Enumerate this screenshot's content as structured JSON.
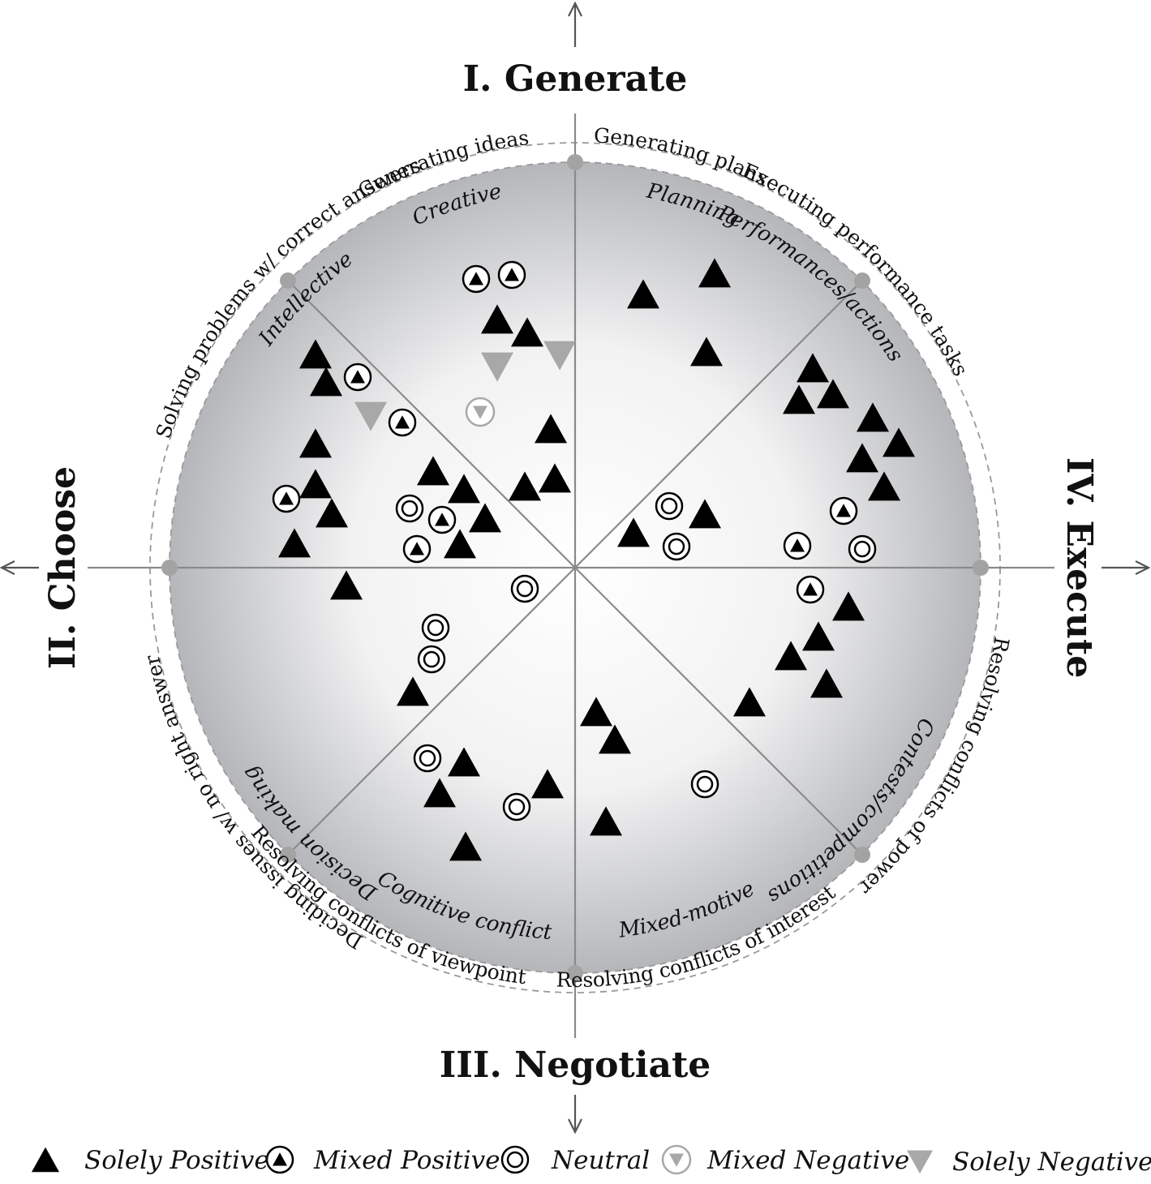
{
  "quadrants": {
    "generate": "I. Generate",
    "choose": "II. Choose",
    "negotiate": "III. Negotiate",
    "execute": "IV. Execute"
  },
  "outer_labels": {
    "generating_ideas": "Generating ideas",
    "generating_plans": "Generating plans",
    "executing_performance": "Executing performance tasks",
    "resolving_power": "Resolving conflicts of power",
    "resolving_interest": "Resolving conflicts of interest",
    "resolving_viewpoint": "Resolving conflicts of viewpoint",
    "deciding_issues": "Deciding issues w/ no right answer",
    "solving_problems": "Solving problems w/ correct answers"
  },
  "sector_labels": {
    "creative": "Creative",
    "planning": "Planning",
    "performances": "Performances/actions",
    "contests": "Contests/competitions",
    "mixed_motive": "Mixed-motive",
    "cognitive_conflict": "Cognitive conflict",
    "decision_making": "Decision making",
    "intellective": "Intellective"
  },
  "legend": {
    "solely_positive": "Solely Positive",
    "mixed_positive": "Mixed Positive",
    "neutral": "Neutral",
    "mixed_negative": "Mixed Negative",
    "solely_negative": "Solely Negative"
  },
  "colors": {
    "marker_dark": "#000000",
    "marker_light": "#a8a8a8",
    "circle_edge": "#b4b6b9",
    "circle_center": "#ffffff",
    "lines": "#8a8a8a"
  }
}
